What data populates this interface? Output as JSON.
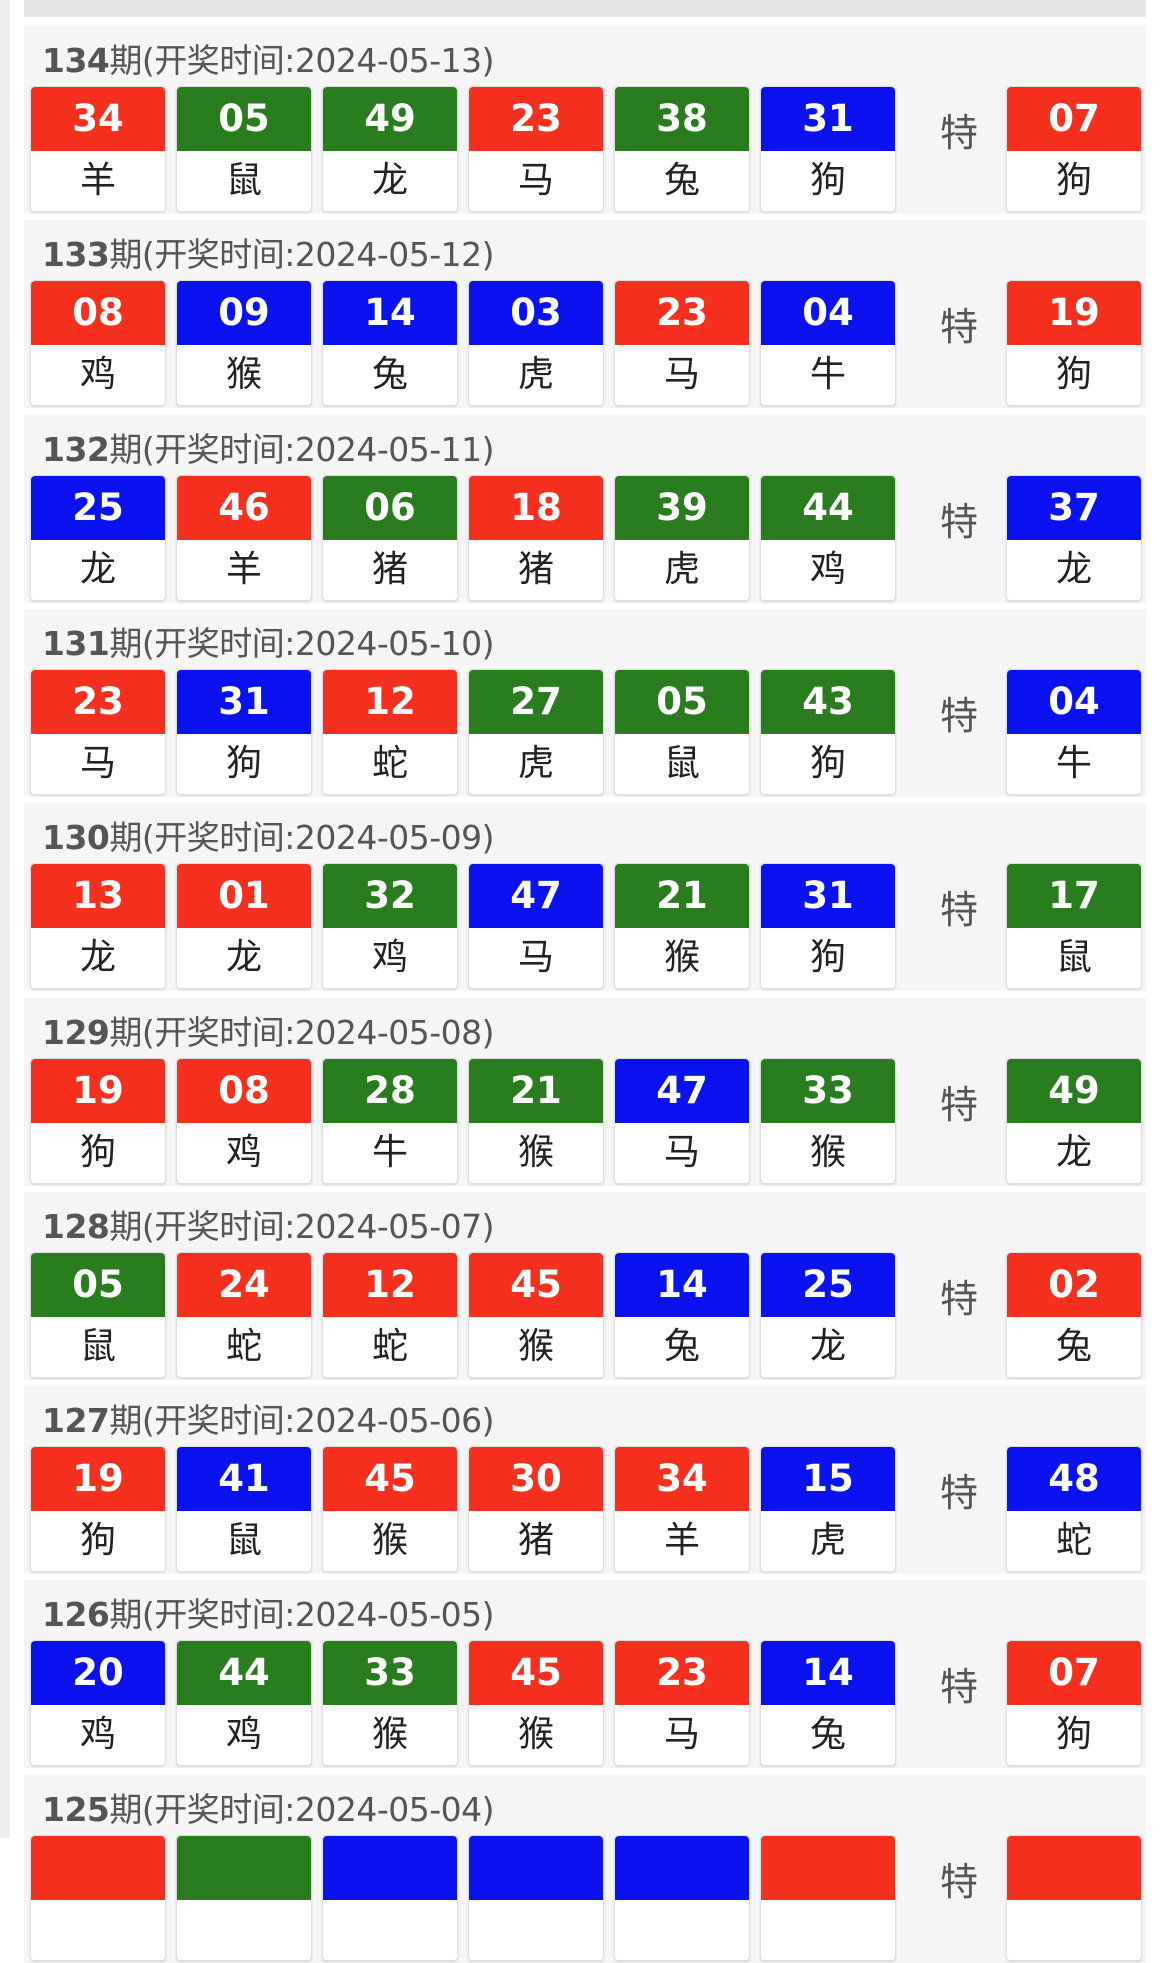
{
  "colors": {
    "red": "#f5301f",
    "green": "#2a7d1e",
    "blue": "#0a12ef"
  },
  "header_template": {
    "suffix": "期(开奖时间:",
    "close": ")"
  },
  "special_label": "特",
  "draws": [
    {
      "period": "134",
      "date": "2024-05-13",
      "balls": [
        {
          "n": "34",
          "z": "羊",
          "c": "red"
        },
        {
          "n": "05",
          "z": "鼠",
          "c": "green"
        },
        {
          "n": "49",
          "z": "龙",
          "c": "green"
        },
        {
          "n": "23",
          "z": "马",
          "c": "red"
        },
        {
          "n": "38",
          "z": "兔",
          "c": "green"
        },
        {
          "n": "31",
          "z": "狗",
          "c": "blue"
        }
      ],
      "special": {
        "n": "07",
        "z": "狗",
        "c": "red"
      }
    },
    {
      "period": "133",
      "date": "2024-05-12",
      "balls": [
        {
          "n": "08",
          "z": "鸡",
          "c": "red"
        },
        {
          "n": "09",
          "z": "猴",
          "c": "blue"
        },
        {
          "n": "14",
          "z": "兔",
          "c": "blue"
        },
        {
          "n": "03",
          "z": "虎",
          "c": "blue"
        },
        {
          "n": "23",
          "z": "马",
          "c": "red"
        },
        {
          "n": "04",
          "z": "牛",
          "c": "blue"
        }
      ],
      "special": {
        "n": "19",
        "z": "狗",
        "c": "red"
      }
    },
    {
      "period": "132",
      "date": "2024-05-11",
      "balls": [
        {
          "n": "25",
          "z": "龙",
          "c": "blue"
        },
        {
          "n": "46",
          "z": "羊",
          "c": "red"
        },
        {
          "n": "06",
          "z": "猪",
          "c": "green"
        },
        {
          "n": "18",
          "z": "猪",
          "c": "red"
        },
        {
          "n": "39",
          "z": "虎",
          "c": "green"
        },
        {
          "n": "44",
          "z": "鸡",
          "c": "green"
        }
      ],
      "special": {
        "n": "37",
        "z": "龙",
        "c": "blue"
      }
    },
    {
      "period": "131",
      "date": "2024-05-10",
      "balls": [
        {
          "n": "23",
          "z": "马",
          "c": "red"
        },
        {
          "n": "31",
          "z": "狗",
          "c": "blue"
        },
        {
          "n": "12",
          "z": "蛇",
          "c": "red"
        },
        {
          "n": "27",
          "z": "虎",
          "c": "green"
        },
        {
          "n": "05",
          "z": "鼠",
          "c": "green"
        },
        {
          "n": "43",
          "z": "狗",
          "c": "green"
        }
      ],
      "special": {
        "n": "04",
        "z": "牛",
        "c": "blue"
      }
    },
    {
      "period": "130",
      "date": "2024-05-09",
      "balls": [
        {
          "n": "13",
          "z": "龙",
          "c": "red"
        },
        {
          "n": "01",
          "z": "龙",
          "c": "red"
        },
        {
          "n": "32",
          "z": "鸡",
          "c": "green"
        },
        {
          "n": "47",
          "z": "马",
          "c": "blue"
        },
        {
          "n": "21",
          "z": "猴",
          "c": "green"
        },
        {
          "n": "31",
          "z": "狗",
          "c": "blue"
        }
      ],
      "special": {
        "n": "17",
        "z": "鼠",
        "c": "green"
      }
    },
    {
      "period": "129",
      "date": "2024-05-08",
      "balls": [
        {
          "n": "19",
          "z": "狗",
          "c": "red"
        },
        {
          "n": "08",
          "z": "鸡",
          "c": "red"
        },
        {
          "n": "28",
          "z": "牛",
          "c": "green"
        },
        {
          "n": "21",
          "z": "猴",
          "c": "green"
        },
        {
          "n": "47",
          "z": "马",
          "c": "blue"
        },
        {
          "n": "33",
          "z": "猴",
          "c": "green"
        }
      ],
      "special": {
        "n": "49",
        "z": "龙",
        "c": "green"
      }
    },
    {
      "period": "128",
      "date": "2024-05-07",
      "balls": [
        {
          "n": "05",
          "z": "鼠",
          "c": "green"
        },
        {
          "n": "24",
          "z": "蛇",
          "c": "red"
        },
        {
          "n": "12",
          "z": "蛇",
          "c": "red"
        },
        {
          "n": "45",
          "z": "猴",
          "c": "red"
        },
        {
          "n": "14",
          "z": "兔",
          "c": "blue"
        },
        {
          "n": "25",
          "z": "龙",
          "c": "blue"
        }
      ],
      "special": {
        "n": "02",
        "z": "兔",
        "c": "red"
      }
    },
    {
      "period": "127",
      "date": "2024-05-06",
      "balls": [
        {
          "n": "19",
          "z": "狗",
          "c": "red"
        },
        {
          "n": "41",
          "z": "鼠",
          "c": "blue"
        },
        {
          "n": "45",
          "z": "猴",
          "c": "red"
        },
        {
          "n": "30",
          "z": "猪",
          "c": "red"
        },
        {
          "n": "34",
          "z": "羊",
          "c": "red"
        },
        {
          "n": "15",
          "z": "虎",
          "c": "blue"
        }
      ],
      "special": {
        "n": "48",
        "z": "蛇",
        "c": "blue"
      }
    },
    {
      "period": "126",
      "date": "2024-05-05",
      "balls": [
        {
          "n": "20",
          "z": "鸡",
          "c": "blue"
        },
        {
          "n": "44",
          "z": "鸡",
          "c": "green"
        },
        {
          "n": "33",
          "z": "猴",
          "c": "green"
        },
        {
          "n": "45",
          "z": "猴",
          "c": "red"
        },
        {
          "n": "23",
          "z": "马",
          "c": "red"
        },
        {
          "n": "14",
          "z": "兔",
          "c": "blue"
        }
      ],
      "special": {
        "n": "07",
        "z": "狗",
        "c": "red"
      }
    },
    {
      "period": "125",
      "date": "2024-05-04",
      "balls": [
        {
          "c": "red"
        },
        {
          "c": "green"
        },
        {
          "c": "blue"
        },
        {
          "c": "blue"
        },
        {
          "c": "blue"
        },
        {
          "c": "red"
        }
      ],
      "special": {
        "c": "red"
      }
    }
  ]
}
